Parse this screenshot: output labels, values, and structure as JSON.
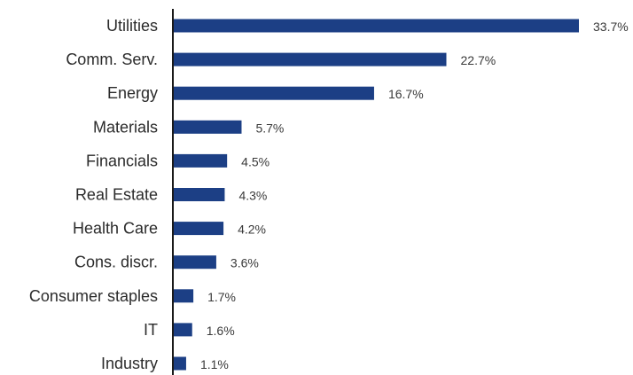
{
  "chart_data": {
    "type": "bar",
    "orientation": "horizontal",
    "title": "",
    "xlabel": "",
    "ylabel": "",
    "categories": [
      "Utilities",
      "Comm. Serv.",
      "Energy",
      "Materials",
      "Financials",
      "Real Estate",
      "Health Care",
      "Cons. discr.",
      "Consumer staples",
      "IT",
      "Industry"
    ],
    "values": [
      33.7,
      22.7,
      16.7,
      5.7,
      4.5,
      4.3,
      4.2,
      3.6,
      1.7,
      1.6,
      1.1
    ],
    "value_labels": [
      "33.7%",
      "22.7%",
      "16.7%",
      "5.7%",
      "4.5%",
      "4.3%",
      "4.2%",
      "3.6%",
      "1.7%",
      "1.6%",
      "1.1%"
    ],
    "xlim": [
      0,
      33.7
    ],
    "grid": false,
    "legend": "none",
    "bar_color": "#1c3f85",
    "axis_color": "#1a1a1a"
  }
}
